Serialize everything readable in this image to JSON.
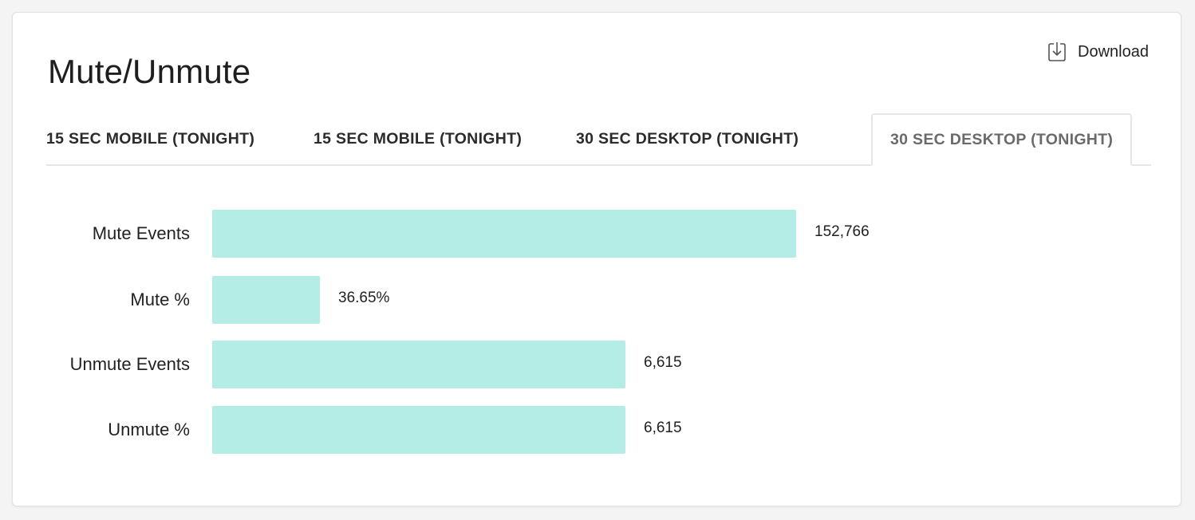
{
  "header": {
    "title": "Mute/Unmute",
    "download_label": "Download"
  },
  "tabs": [
    {
      "label": "15 SEC MOBILE (TONIGHT)",
      "active": false
    },
    {
      "label": "15 SEC MOBILE (TONIGHT)",
      "active": false
    },
    {
      "label": "30 SEC DESKTOP (TONIGHT)",
      "active": false
    },
    {
      "label": "30 SEC DESKTOP (TONIGHT)",
      "active": true
    }
  ],
  "colors": {
    "bar": "#b3ede6",
    "tab_active_text": "#6a6a6a"
  },
  "chart_data": {
    "type": "bar",
    "orientation": "horizontal",
    "categories": [
      "Mute Events",
      "Mute %",
      "Unmute Events",
      "Unmute %"
    ],
    "value_labels": [
      "152,766",
      "36.65%",
      "6,615",
      "6,615"
    ],
    "relative_lengths": [
      1.0,
      0.184,
      0.708,
      0.708
    ]
  }
}
